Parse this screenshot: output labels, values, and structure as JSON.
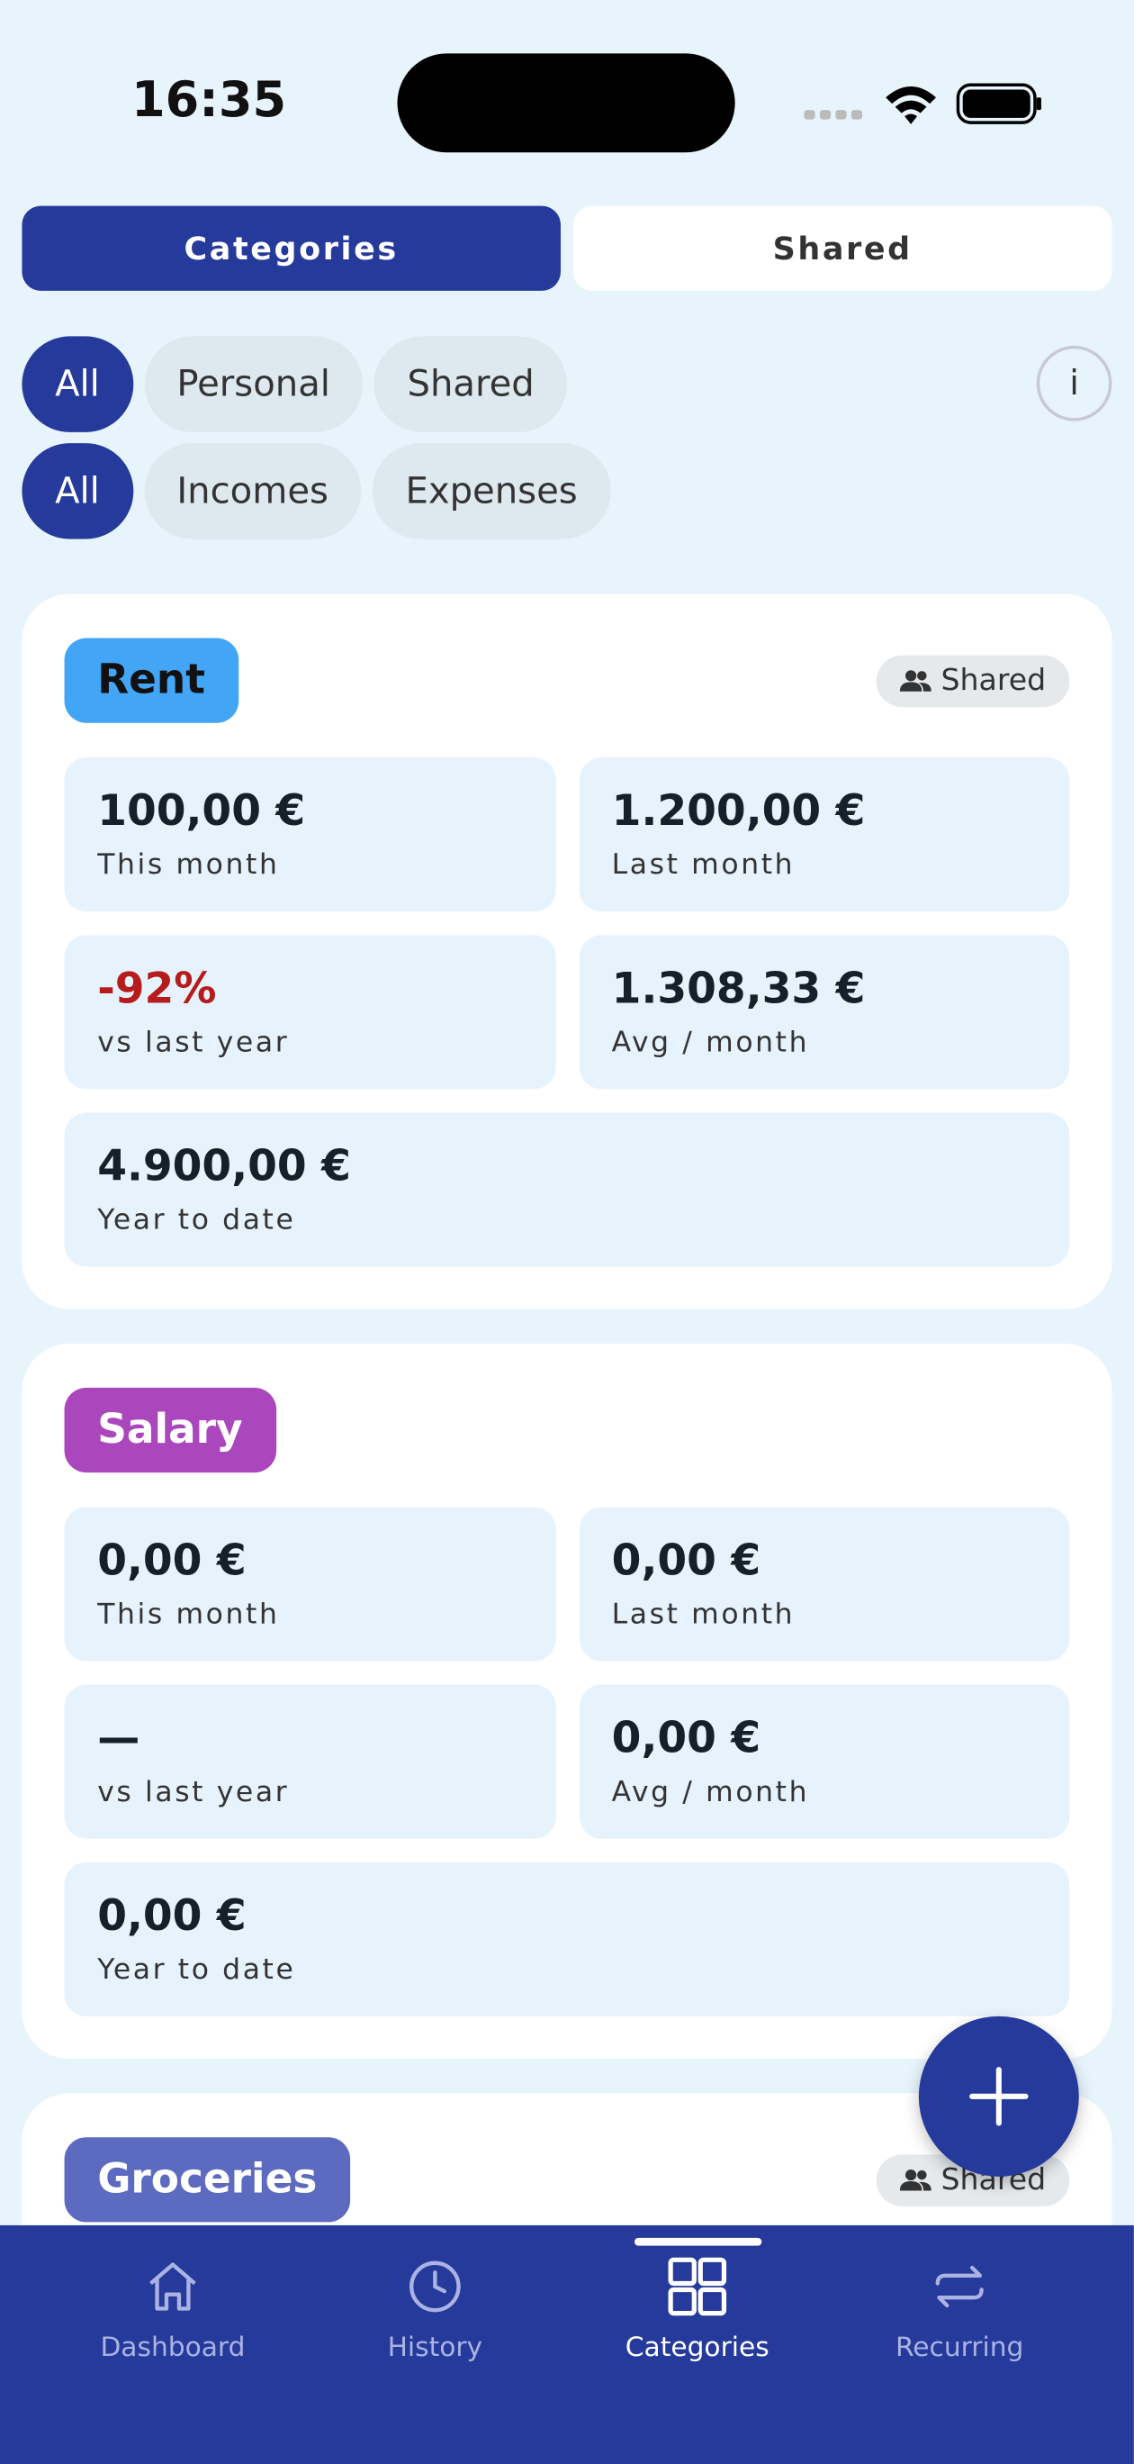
{
  "status_bar": {
    "time": "16:35"
  },
  "tabs": [
    {
      "label": "Categories",
      "active": true
    },
    {
      "label": "Shared",
      "active": false
    }
  ],
  "filters": [
    [
      {
        "label": "All",
        "active": true
      },
      {
        "label": "Personal",
        "active": false
      },
      {
        "label": "Shared",
        "active": false
      }
    ],
    [
      {
        "label": "All",
        "active": true
      },
      {
        "label": "Incomes",
        "active": false
      },
      {
        "label": "Expenses",
        "active": false
      }
    ]
  ],
  "info_button": "i",
  "cards": [
    {
      "name": "Rent",
      "color": "#42a5f5",
      "text_color": "#111111",
      "badge": "Shared",
      "stats": [
        {
          "value": "100,00 €",
          "label": "This month"
        },
        {
          "value": "1.200,00 €",
          "label": "Last month"
        },
        {
          "value": "-92%",
          "label": "vs last year",
          "color": "#b71c1c"
        },
        {
          "value": "1.308,33 €",
          "label": "Avg / month"
        },
        {
          "value": "4.900,00 €",
          "label": "Year to date"
        }
      ]
    },
    {
      "name": "Salary",
      "color": "#ab47bc",
      "text_color": "#ffffff",
      "stats": [
        {
          "value": "0,00 €",
          "label": "This month"
        },
        {
          "value": "0,00 €",
          "label": "Last month"
        },
        {
          "value": "—",
          "label": "vs last year"
        },
        {
          "value": "0,00 €",
          "label": "Avg / month"
        },
        {
          "value": "0,00 €",
          "label": "Year to date"
        }
      ]
    },
    {
      "name": "Groceries",
      "color": "#5c6bc0",
      "text_color": "#ffffff",
      "badge": "Shared",
      "stats": []
    }
  ],
  "nav": [
    {
      "label": "Dashboard",
      "active": false
    },
    {
      "label": "History",
      "active": false
    },
    {
      "label": "Categories",
      "active": true
    },
    {
      "label": "Recurring",
      "active": false
    }
  ]
}
